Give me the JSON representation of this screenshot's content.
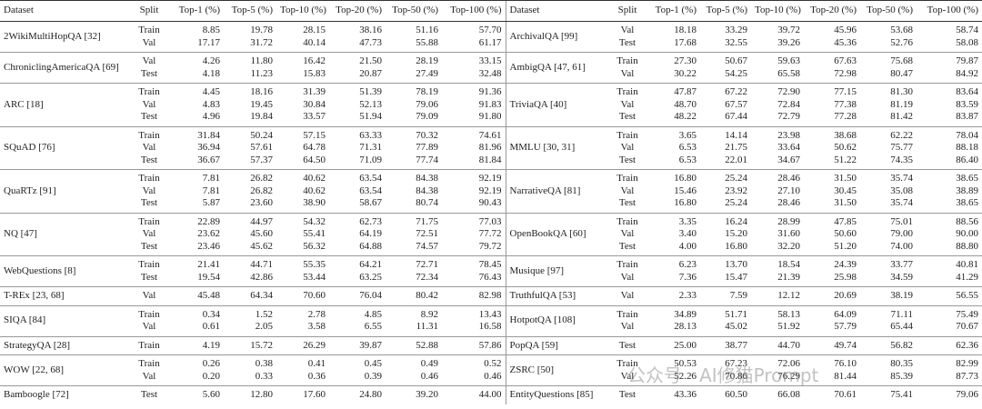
{
  "watermark": "公众号 · AI修猫Prompt",
  "left": {
    "header": [
      "Dataset",
      "Split",
      "Top-1 (%)",
      "Top-5 (%)",
      "Top-10 (%)",
      "Top-20 (%)",
      "Top-50 (%)",
      "Top-100 (%)"
    ],
    "groups": [
      {
        "dataset": "2WikiMultiHopQA [32]",
        "rows": [
          {
            "split": "Train",
            "values": [
              "8.85",
              "19.78",
              "28.15",
              "38.16",
              "51.16",
              "57.70"
            ]
          },
          {
            "split": "Val",
            "values": [
              "17.17",
              "31.72",
              "40.14",
              "47.73",
              "55.88",
              "61.17"
            ]
          }
        ]
      },
      {
        "dataset": "ChroniclingAmericaQA [69]",
        "rows": [
          {
            "split": "Val",
            "values": [
              "4.26",
              "11.80",
              "16.42",
              "21.50",
              "28.19",
              "33.15"
            ]
          },
          {
            "split": "Test",
            "values": [
              "4.18",
              "11.23",
              "15.83",
              "20.87",
              "27.49",
              "32.48"
            ]
          }
        ]
      },
      {
        "dataset": "ARC [18]",
        "rows": [
          {
            "split": "Train",
            "values": [
              "4.45",
              "18.16",
              "31.39",
              "51.39",
              "78.19",
              "91.36"
            ]
          },
          {
            "split": "Val",
            "values": [
              "4.83",
              "19.45",
              "30.84",
              "52.13",
              "79.06",
              "91.83"
            ]
          },
          {
            "split": "Test",
            "values": [
              "4.96",
              "19.84",
              "33.57",
              "51.94",
              "79.09",
              "91.80"
            ]
          }
        ]
      },
      {
        "dataset": "SQuAD [76]",
        "rows": [
          {
            "split": "Train",
            "values": [
              "31.84",
              "50.24",
              "57.15",
              "63.33",
              "70.32",
              "74.61"
            ]
          },
          {
            "split": "Val",
            "values": [
              "36.94",
              "57.61",
              "64.78",
              "71.31",
              "77.89",
              "81.96"
            ]
          },
          {
            "split": "Test",
            "values": [
              "36.67",
              "57.37",
              "64.50",
              "71.09",
              "77.74",
              "81.84"
            ]
          }
        ]
      },
      {
        "dataset": "QuaRTz [91]",
        "rows": [
          {
            "split": "Train",
            "values": [
              "7.81",
              "26.82",
              "40.62",
              "63.54",
              "84.38",
              "92.19"
            ]
          },
          {
            "split": "Val",
            "values": [
              "7.81",
              "26.82",
              "40.62",
              "63.54",
              "84.38",
              "92.19"
            ]
          },
          {
            "split": "Test",
            "values": [
              "5.87",
              "23.60",
              "38.90",
              "58.67",
              "80.74",
              "90.43"
            ]
          }
        ]
      },
      {
        "dataset": "NQ [47]",
        "rows": [
          {
            "split": "Train",
            "values": [
              "22.89",
              "44.97",
              "54.32",
              "62.73",
              "71.75",
              "77.03"
            ]
          },
          {
            "split": "Val",
            "values": [
              "23.62",
              "45.60",
              "55.41",
              "64.19",
              "72.51",
              "77.72"
            ]
          },
          {
            "split": "Test",
            "values": [
              "23.46",
              "45.62",
              "56.32",
              "64.88",
              "74.57",
              "79.72"
            ]
          }
        ]
      },
      {
        "dataset": "WebQuestions [8]",
        "rows": [
          {
            "split": "Train",
            "values": [
              "21.41",
              "44.71",
              "55.35",
              "64.21",
              "72.71",
              "78.45"
            ]
          },
          {
            "split": "Test",
            "values": [
              "19.54",
              "42.86",
              "53.44",
              "63.25",
              "72.34",
              "76.43"
            ]
          }
        ]
      },
      {
        "dataset": "T-REx [23, 68]",
        "rows": [
          {
            "split": "Val",
            "values": [
              "45.48",
              "64.34",
              "70.60",
              "76.04",
              "80.42",
              "82.98"
            ]
          }
        ]
      },
      {
        "dataset": "SIQA [84]",
        "rows": [
          {
            "split": "Train",
            "values": [
              "0.34",
              "1.52",
              "2.78",
              "4.85",
              "8.92",
              "13.43"
            ]
          },
          {
            "split": "Val",
            "values": [
              "0.61",
              "2.05",
              "3.58",
              "6.55",
              "11.31",
              "16.58"
            ]
          }
        ]
      },
      {
        "dataset": "StrategyQA [28]",
        "rows": [
          {
            "split": "Train",
            "values": [
              "4.19",
              "15.72",
              "26.29",
              "39.87",
              "52.88",
              "57.86"
            ]
          }
        ]
      },
      {
        "dataset": "WOW [22, 68]",
        "rows": [
          {
            "split": "Train",
            "values": [
              "0.26",
              "0.38",
              "0.41",
              "0.45",
              "0.49",
              "0.52"
            ]
          },
          {
            "split": "Val",
            "values": [
              "0.20",
              "0.33",
              "0.36",
              "0.39",
              "0.46",
              "0.46"
            ]
          }
        ]
      },
      {
        "dataset": "Bamboogle [72]",
        "rows": [
          {
            "split": "Test",
            "values": [
              "5.60",
              "12.80",
              "17.60",
              "24.80",
              "39.20",
              "44.00"
            ]
          }
        ]
      }
    ]
  },
  "right": {
    "header": [
      "Dataset",
      "Split",
      "Top-1 (%)",
      "Top-5 (%)",
      "Top-10 (%)",
      "Top-20 (%)",
      "Top-50 (%)",
      "Top-100 (%)"
    ],
    "groups": [
      {
        "dataset": "ArchivalQA [99]",
        "rows": [
          {
            "split": "Val",
            "values": [
              "18.18",
              "33.29",
              "39.72",
              "45.96",
              "53.68",
              "58.74"
            ]
          },
          {
            "split": "Test",
            "values": [
              "17.68",
              "32.55",
              "39.26",
              "45.36",
              "52.76",
              "58.08"
            ]
          }
        ]
      },
      {
        "dataset": "AmbigQA [47, 61]",
        "rows": [
          {
            "split": "Train",
            "values": [
              "27.30",
              "50.67",
              "59.63",
              "67.63",
              "75.68",
              "79.87"
            ]
          },
          {
            "split": "Val",
            "values": [
              "30.22",
              "54.25",
              "65.58",
              "72.98",
              "80.47",
              "84.92"
            ]
          }
        ]
      },
      {
        "dataset": "TriviaQA [40]",
        "rows": [
          {
            "split": "Train",
            "values": [
              "47.87",
              "67.22",
              "72.90",
              "77.15",
              "81.30",
              "83.64"
            ]
          },
          {
            "split": "Val",
            "values": [
              "48.70",
              "67.57",
              "72.84",
              "77.38",
              "81.19",
              "83.59"
            ]
          },
          {
            "split": "Test",
            "values": [
              "48.22",
              "67.44",
              "72.79",
              "77.28",
              "81.42",
              "83.87"
            ]
          }
        ]
      },
      {
        "dataset": "MMLU [30, 31]",
        "rows": [
          {
            "split": "Train",
            "values": [
              "3.65",
              "14.14",
              "23.98",
              "38.68",
              "62.22",
              "78.04"
            ]
          },
          {
            "split": "Val",
            "values": [
              "6.53",
              "21.75",
              "33.64",
              "50.62",
              "75.77",
              "88.18"
            ]
          },
          {
            "split": "Test",
            "values": [
              "6.53",
              "22.01",
              "34.67",
              "51.22",
              "74.35",
              "86.40"
            ]
          }
        ]
      },
      {
        "dataset": "NarrativeQA [81]",
        "rows": [
          {
            "split": "Train",
            "values": [
              "16.80",
              "25.24",
              "28.46",
              "31.50",
              "35.74",
              "38.65"
            ]
          },
          {
            "split": "Val",
            "values": [
              "15.46",
              "23.92",
              "27.10",
              "30.45",
              "35.08",
              "38.89"
            ]
          },
          {
            "split": "Test",
            "values": [
              "16.80",
              "25.24",
              "28.46",
              "31.50",
              "35.74",
              "38.65"
            ]
          }
        ]
      },
      {
        "dataset": "OpenBookQA [60]",
        "rows": [
          {
            "split": "Train",
            "values": [
              "3.35",
              "16.24",
              "28.99",
              "47.85",
              "75.01",
              "88.56"
            ]
          },
          {
            "split": "Val",
            "values": [
              "3.40",
              "15.20",
              "31.60",
              "50.60",
              "79.00",
              "90.00"
            ]
          },
          {
            "split": "Test",
            "values": [
              "4.00",
              "16.80",
              "32.20",
              "51.20",
              "74.00",
              "88.80"
            ]
          }
        ]
      },
      {
        "dataset": "Musique [97]",
        "rows": [
          {
            "split": "Train",
            "values": [
              "6.23",
              "13.70",
              "18.54",
              "24.39",
              "33.77",
              "40.81"
            ]
          },
          {
            "split": "Val",
            "values": [
              "7.36",
              "15.47",
              "21.39",
              "25.98",
              "34.59",
              "41.29"
            ]
          }
        ]
      },
      {
        "dataset": "TruthfulQA [53]",
        "rows": [
          {
            "split": "Val",
            "values": [
              "2.33",
              "7.59",
              "12.12",
              "20.69",
              "38.19",
              "56.55"
            ]
          }
        ]
      },
      {
        "dataset": "HotpotQA [108]",
        "rows": [
          {
            "split": "Train",
            "values": [
              "34.89",
              "51.71",
              "58.13",
              "64.09",
              "71.11",
              "75.49"
            ]
          },
          {
            "split": "Val",
            "values": [
              "28.13",
              "45.02",
              "51.92",
              "57.79",
              "65.44",
              "70.67"
            ]
          }
        ]
      },
      {
        "dataset": "PopQA [59]",
        "rows": [
          {
            "split": "Test",
            "values": [
              "25.00",
              "38.77",
              "44.70",
              "49.74",
              "56.82",
              "62.36"
            ]
          }
        ]
      },
      {
        "dataset": "ZSRC [50]",
        "rows": [
          {
            "split": "Train",
            "values": [
              "50.53",
              "67.23",
              "72.06",
              "76.10",
              "80.35",
              "82.99"
            ]
          },
          {
            "split": "Val",
            "values": [
              "52.26",
              "70.86",
              "76.29",
              "81.44",
              "85.39",
              "87.73"
            ]
          }
        ]
      },
      {
        "dataset": "EntityQuestions [85]",
        "rows": [
          {
            "split": "Test",
            "values": [
              "43.36",
              "60.50",
              "66.08",
              "70.61",
              "75.41",
              "79.06"
            ]
          }
        ]
      }
    ]
  }
}
